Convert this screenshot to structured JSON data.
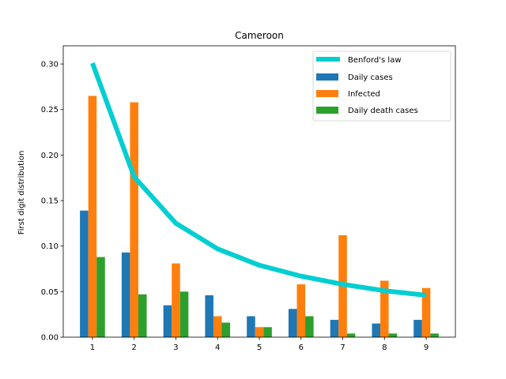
{
  "chart_data": {
    "type": "bar",
    "title": "Cameroon",
    "xlabel": "",
    "ylabel": "First digit distribution",
    "categories": [
      "1",
      "2",
      "3",
      "4",
      "5",
      "6",
      "7",
      "8",
      "9"
    ],
    "ylim": [
      0,
      0.32
    ],
    "yticks": [
      "0.00",
      "0.05",
      "0.10",
      "0.15",
      "0.20",
      "0.25",
      "0.30"
    ],
    "legend_position": "top-right",
    "grid": false,
    "line_series": {
      "name": "Benford's law",
      "color": "#00CED1",
      "values": [
        0.301,
        0.176,
        0.125,
        0.097,
        0.079,
        0.067,
        0.058,
        0.051,
        0.046
      ]
    },
    "series": [
      {
        "name": "Daily cases",
        "color": "#1f77b4",
        "values": [
          0.139,
          0.093,
          0.035,
          0.046,
          0.023,
          0.031,
          0.019,
          0.015,
          0.019
        ]
      },
      {
        "name": "Infected",
        "color": "#ff7f0e",
        "values": [
          0.265,
          0.258,
          0.081,
          0.023,
          0.011,
          0.058,
          0.112,
          0.062,
          0.054
        ]
      },
      {
        "name": "Daily death cases",
        "color": "#2ca02c",
        "values": [
          0.088,
          0.047,
          0.05,
          0.016,
          0.011,
          0.023,
          0.004,
          0.004,
          0.004
        ]
      }
    ]
  }
}
